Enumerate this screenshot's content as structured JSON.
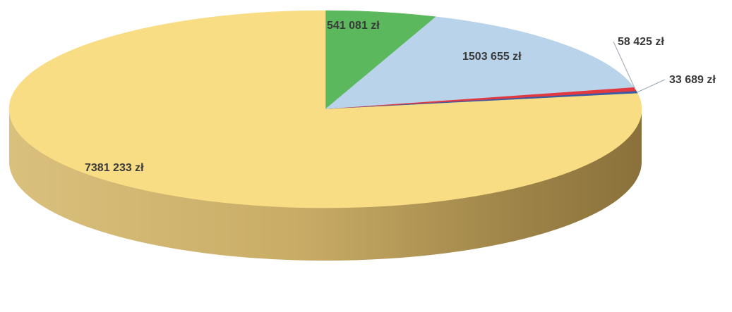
{
  "chart_data": {
    "type": "pie",
    "style": "3d",
    "title": "",
    "slices": [
      {
        "label": "541 081 zł",
        "value": 541081,
        "color": "#5cb85c"
      },
      {
        "label": "1503 655 zł",
        "value": 1503655,
        "color": "#b8d3ea"
      },
      {
        "label": "58 425 zł",
        "value": 58425,
        "color": "#e2383f"
      },
      {
        "label": "33 689 zł",
        "value": 33689,
        "color": "#3b5ba5"
      },
      {
        "label": "7381 233 zł",
        "value": 7381233,
        "color": "#f8dd84"
      }
    ]
  }
}
